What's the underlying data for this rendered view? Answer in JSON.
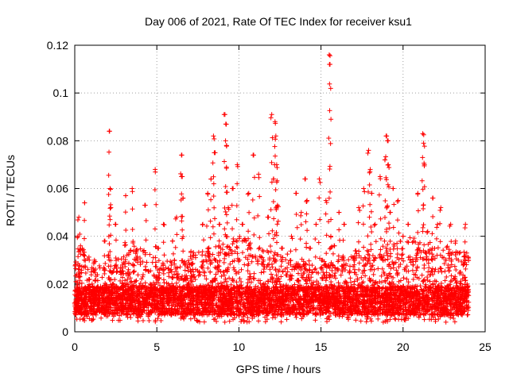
{
  "chart_data": {
    "type": "scatter",
    "title": "Day 006 of 2021, Rate Of TEC Index for receiver ksu1",
    "xlabel": "GPS time / hours",
    "ylabel": "ROTI / TECUs",
    "xlim": [
      0,
      25
    ],
    "ylim": [
      0,
      0.12
    ],
    "x_ticks": [
      0,
      5,
      10,
      15,
      20,
      25
    ],
    "x_tick_labels": [
      "0",
      "5",
      "10",
      "15",
      "20",
      "25"
    ],
    "y_ticks": [
      0,
      0.02,
      0.04,
      0.06,
      0.08,
      0.1,
      0.12
    ],
    "y_tick_labels": [
      "0",
      "0.02",
      "0.04",
      "0.06",
      "0.08",
      "0.1",
      "0.12"
    ],
    "grid": true,
    "legend": "none",
    "marker": "plus",
    "color": "#ff0000",
    "series": [
      {
        "x": [
          0.03,
          0.12,
          0.2,
          0.25,
          0.3,
          0.35,
          0.45,
          0.6,
          0.9,
          1.2,
          1.5,
          1.8,
          2.1,
          2.15,
          2.2,
          2.3,
          2.5,
          2.8,
          3.1,
          3.3,
          3.5,
          3.6,
          3.9,
          4.3,
          4.6,
          4.9,
          5.1,
          5.4,
          5.7,
          5.95,
          6.2,
          6.5,
          6.55,
          6.6,
          6.7,
          6.9,
          7.2,
          7.5,
          7.8,
          8.1,
          8.3,
          8.45,
          8.5,
          8.6,
          8.8,
          9.05,
          9.15,
          9.2,
          9.25,
          9.35,
          9.6,
          9.9,
          10.2,
          10.6,
          10.9,
          11.2,
          11.5,
          11.8,
          12.0,
          12.1,
          12.2,
          12.25,
          12.3,
          12.35,
          12.6,
          12.9,
          13.2,
          13.5,
          13.8,
          14.05,
          14.15,
          14.3,
          14.5,
          14.7,
          14.9,
          15.1,
          15.3,
          15.5,
          15.55,
          15.6,
          15.8,
          16.1,
          16.4,
          16.7,
          17.0,
          17.3,
          17.6,
          17.9,
          18.0,
          18.1,
          18.3,
          18.6,
          18.9,
          19.0,
          19.05,
          19.1,
          19.2,
          19.4,
          19.7,
          20.0,
          20.3,
          20.6,
          20.9,
          21.2,
          21.25,
          21.3,
          21.5,
          21.8,
          22.1,
          22.3,
          22.6,
          22.9,
          23.2,
          23.5,
          23.8,
          23.9
        ],
        "y": [
          0.012,
          0.018,
          0.04,
          0.048,
          0.025,
          0.036,
          0.016,
          0.054,
          0.022,
          0.03,
          0.012,
          0.038,
          0.084,
          0.06,
          0.052,
          0.02,
          0.045,
          0.015,
          0.057,
          0.033,
          0.06,
          0.025,
          0.013,
          0.053,
          0.02,
          0.068,
          0.035,
          0.045,
          0.012,
          0.038,
          0.048,
          0.074,
          0.065,
          0.056,
          0.028,
          0.02,
          0.032,
          0.015,
          0.045,
          0.058,
          0.064,
          0.082,
          0.075,
          0.03,
          0.045,
          0.025,
          0.091,
          0.087,
          0.078,
          0.052,
          0.06,
          0.07,
          0.045,
          0.058,
          0.074,
          0.066,
          0.03,
          0.048,
          0.091,
          0.064,
          0.088,
          0.082,
          0.07,
          0.053,
          0.035,
          0.018,
          0.04,
          0.058,
          0.05,
          0.064,
          0.055,
          0.035,
          0.025,
          0.045,
          0.064,
          0.03,
          0.055,
          0.116,
          0.112,
          0.04,
          0.036,
          0.05,
          0.045,
          0.018,
          0.03,
          0.052,
          0.06,
          0.076,
          0.068,
          0.058,
          0.045,
          0.065,
          0.072,
          0.082,
          0.08,
          0.07,
          0.05,
          0.06,
          0.055,
          0.04,
          0.045,
          0.028,
          0.058,
          0.083,
          0.079,
          0.07,
          0.042,
          0.056,
          0.045,
          0.052,
          0.03,
          0.045,
          0.038,
          0.025,
          0.045,
          0.02
        ]
      }
    ],
    "density_band": {
      "x_range": [
        0,
        24
      ],
      "baseline_typical": 0.013,
      "baseline_min": 0.004,
      "upper_envelope": [
        0.035,
        0.03,
        0.032,
        0.038,
        0.036,
        0.03,
        0.03,
        0.034,
        0.036,
        0.04,
        0.04,
        0.036,
        0.034,
        0.03,
        0.028,
        0.03,
        0.032,
        0.034,
        0.036,
        0.038,
        0.04,
        0.038,
        0.036,
        0.034,
        0.032
      ]
    }
  }
}
